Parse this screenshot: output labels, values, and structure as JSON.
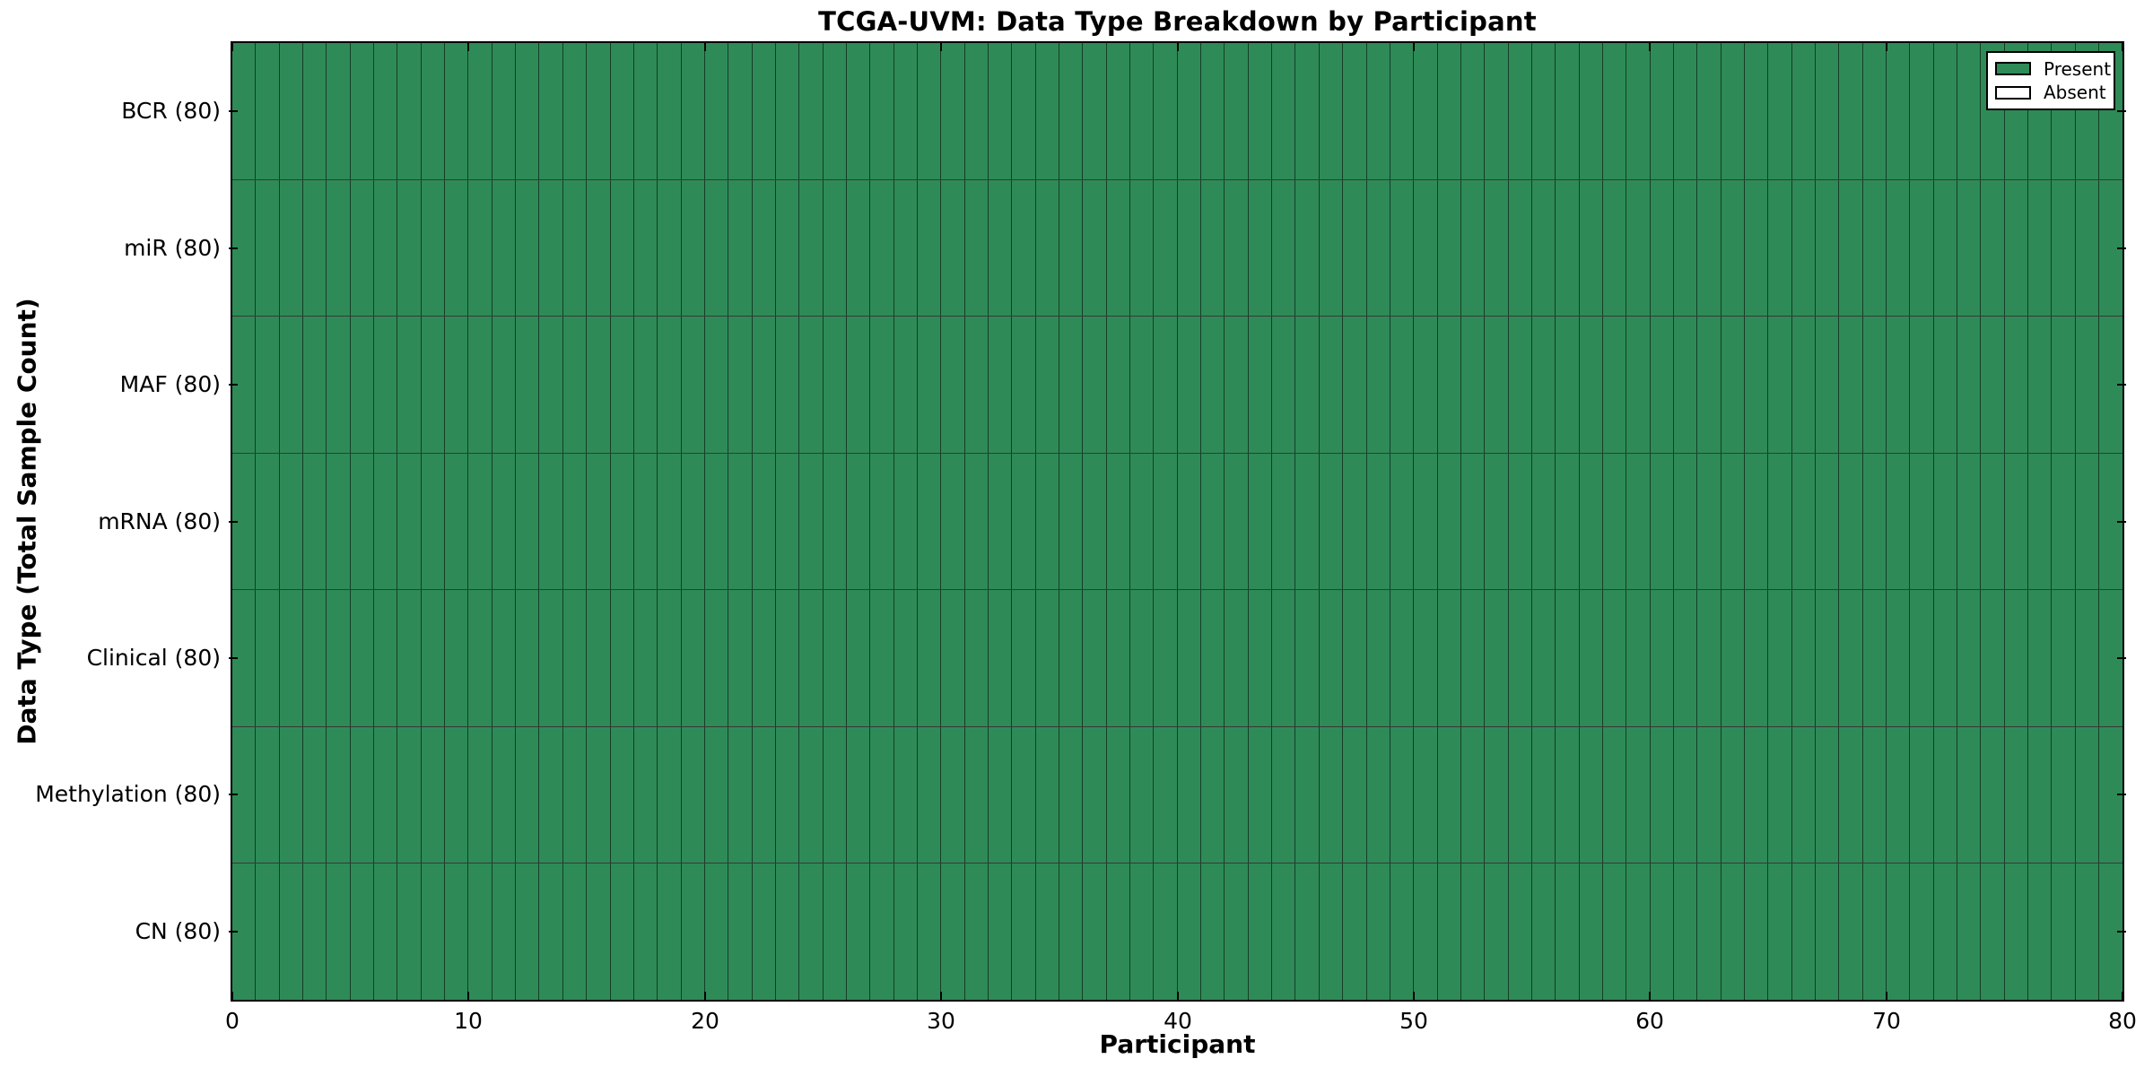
{
  "figure": {
    "title": "TCGA-UVM: Data Type Breakdown by Participant",
    "xlabel": "Participant",
    "ylabel": "Data Type (Total Sample Count)"
  },
  "legend": {
    "items": [
      {
        "label": "Present",
        "color": "#2E8B57"
      },
      {
        "label": "Absent",
        "color": "#FFFFFF"
      }
    ],
    "position": "upper right"
  },
  "colors": {
    "present": "#2E8B57",
    "absent": "#FFFFFF",
    "frame": "#000000",
    "grid_line": "#000000",
    "background": "#FFFFFF"
  },
  "chart_data": {
    "type": "heatmap",
    "title": "TCGA-UVM: Data Type Breakdown by Participant",
    "xlabel": "Participant",
    "ylabel": "Data Type (Total Sample Count)",
    "x_range": [
      0,
      80
    ],
    "x_ticks": [
      0,
      10,
      20,
      30,
      40,
      50,
      60,
      70,
      80
    ],
    "n_participants": 80,
    "grid": "cell borders on",
    "legend_position": "upper right",
    "cell_states": [
      "present",
      "absent"
    ],
    "rows": [
      {
        "label": "BCR (80)",
        "data_type": "BCR",
        "total_sample_count": 80,
        "present_count": 80,
        "absent_participants": []
      },
      {
        "label": "miR (80)",
        "data_type": "miR",
        "total_sample_count": 80,
        "present_count": 80,
        "absent_participants": []
      },
      {
        "label": "MAF (80)",
        "data_type": "MAF",
        "total_sample_count": 80,
        "present_count": 80,
        "absent_participants": []
      },
      {
        "label": "mRNA (80)",
        "data_type": "mRNA",
        "total_sample_count": 80,
        "present_count": 80,
        "absent_participants": []
      },
      {
        "label": "Clinical (80)",
        "data_type": "Clinical",
        "total_sample_count": 80,
        "present_count": 80,
        "absent_participants": []
      },
      {
        "label": "Methylation (80)",
        "data_type": "Methylation",
        "total_sample_count": 80,
        "present_count": 80,
        "absent_participants": []
      },
      {
        "label": "CN (80)",
        "data_type": "CN",
        "total_sample_count": 80,
        "present_count": 80,
        "absent_participants": []
      }
    ]
  }
}
